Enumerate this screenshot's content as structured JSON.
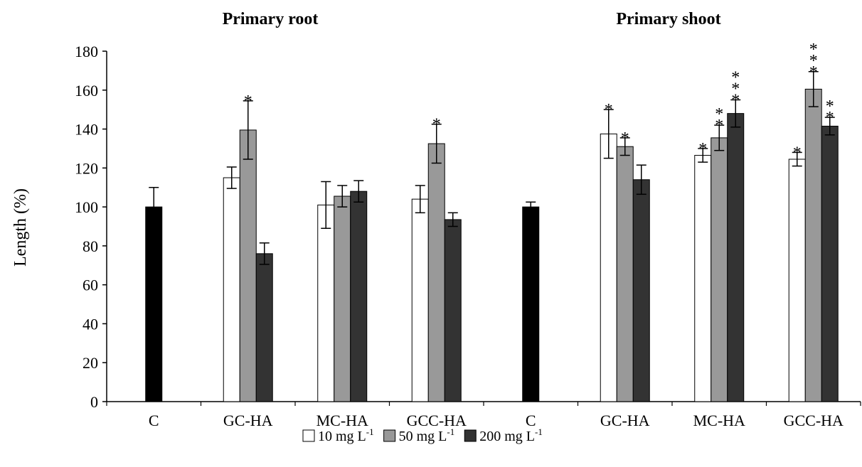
{
  "chart_data": {
    "type": "bar",
    "ylabel": "Length (%)",
    "ylim": [
      0,
      180
    ],
    "yticks": [
      0,
      20,
      40,
      60,
      80,
      100,
      120,
      140,
      160,
      180
    ],
    "grid": false,
    "legend_position": "bottom",
    "panels": [
      {
        "title": "Primary root",
        "groups": [
          {
            "label": "C",
            "control": {
              "value": 100,
              "error": 10
            }
          },
          {
            "label": "GC-HA",
            "bars": [
              {
                "value": 115,
                "error": 5.5,
                "sig": ""
              },
              {
                "value": 139.5,
                "error": 15,
                "sig": "*"
              },
              {
                "value": 76,
                "error": 5.5,
                "sig": ""
              }
            ]
          },
          {
            "label": "MC-HA",
            "bars": [
              {
                "value": 101,
                "error": 12,
                "sig": ""
              },
              {
                "value": 105.5,
                "error": 5.5,
                "sig": ""
              },
              {
                "value": 108,
                "error": 5.5,
                "sig": ""
              }
            ]
          },
          {
            "label": "GCC-HA",
            "bars": [
              {
                "value": 104,
                "error": 7,
                "sig": ""
              },
              {
                "value": 132.5,
                "error": 10,
                "sig": "*"
              },
              {
                "value": 93.5,
                "error": 3.5,
                "sig": ""
              }
            ]
          }
        ]
      },
      {
        "title": "Primary shoot",
        "groups": [
          {
            "label": "C",
            "control": {
              "value": 100,
              "error": 2.5
            }
          },
          {
            "label": "GC-HA",
            "bars": [
              {
                "value": 137.5,
                "error": 12.5,
                "sig": "*"
              },
              {
                "value": 131,
                "error": 4.5,
                "sig": "*"
              },
              {
                "value": 114,
                "error": 7.5,
                "sig": ""
              }
            ]
          },
          {
            "label": "MC-HA",
            "bars": [
              {
                "value": 126.5,
                "error": 3.5,
                "sig": "*"
              },
              {
                "value": 135.5,
                "error": 6.5,
                "sig": "**"
              },
              {
                "value": 148,
                "error": 7,
                "sig": "***"
              }
            ]
          },
          {
            "label": "GCC-HA",
            "bars": [
              {
                "value": 124.5,
                "error": 3.5,
                "sig": "*"
              },
              {
                "value": 160.5,
                "error": 9,
                "sig": "***"
              },
              {
                "value": 141.5,
                "error": 4.5,
                "sig": "**"
              }
            ]
          }
        ]
      }
    ],
    "series": [
      {
        "name": "10 mg L",
        "sup": "-1",
        "color": "#ffffff"
      },
      {
        "name": "50 mg L",
        "sup": "-1",
        "color": "#999999"
      },
      {
        "name": "200 mg L",
        "sup": "-1",
        "color": "#333333"
      }
    ],
    "control_color": "#000000"
  }
}
